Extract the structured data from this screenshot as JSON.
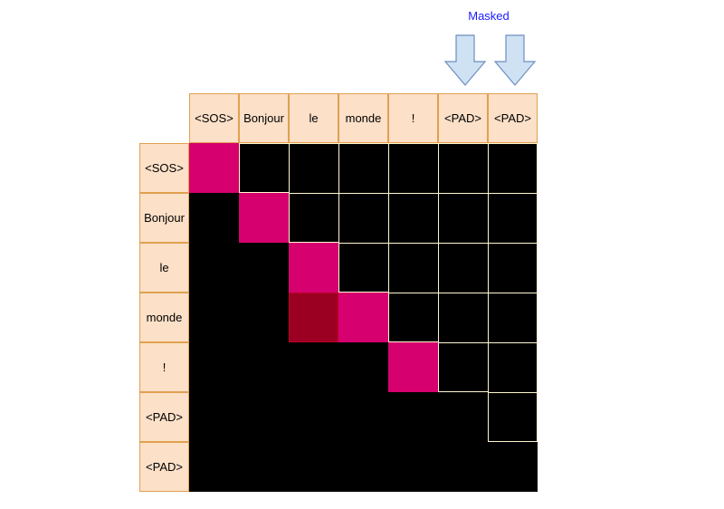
{
  "masked_label": "Masked",
  "columns": [
    "<SOS>",
    "Bonjour",
    "le",
    "monde",
    "!",
    "<PAD>",
    "<PAD>"
  ],
  "rows": [
    "<SOS>",
    "Bonjour",
    "le",
    "monde",
    "!",
    "<PAD>",
    "<PAD>"
  ],
  "masked_columns": [
    5,
    6
  ],
  "colors": {
    "header_fill": "#fce0c8",
    "header_border": "#e0a050",
    "diagonal": "#d6006e",
    "highlight": "#9b0022",
    "masked": "#000000",
    "masked_label": "#1a1aff",
    "arrow_fill": "#cfe2f3",
    "arrow_stroke": "#6c8ebf"
  },
  "highlight_cells": [
    [
      3,
      2
    ]
  ],
  "icons": [
    "down-arrow-icon",
    "down-arrow-icon"
  ]
}
